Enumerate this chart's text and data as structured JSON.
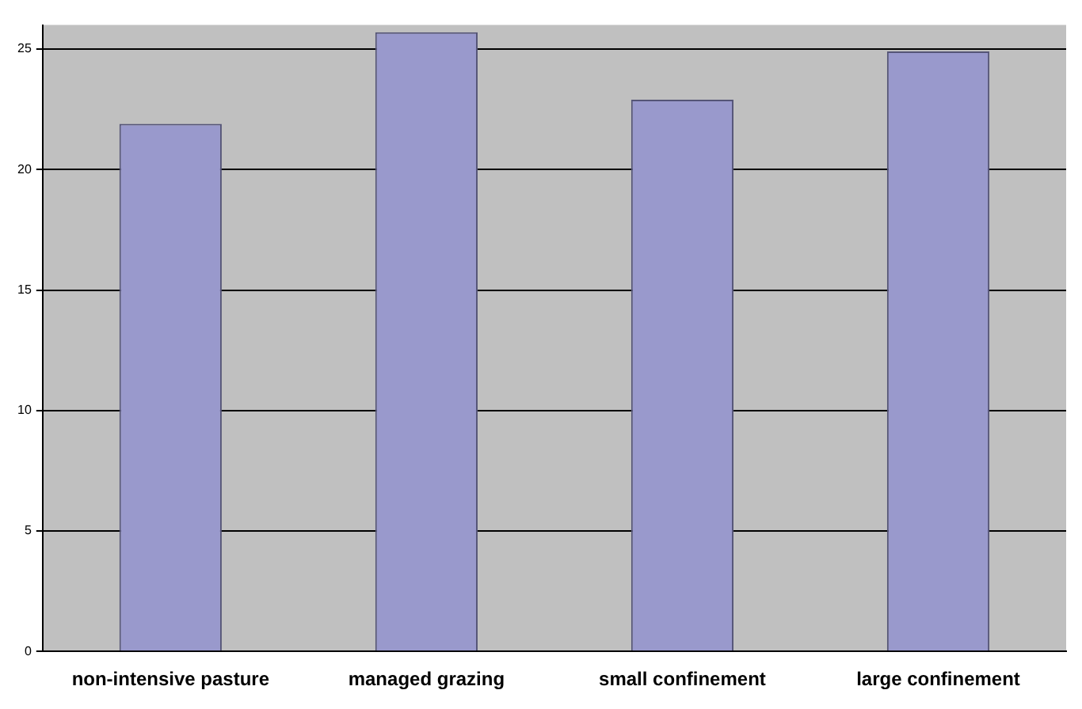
{
  "chart_data": {
    "type": "bar",
    "categories": [
      "non-intensive pasture",
      "managed grazing",
      "small confinement",
      "large confinement"
    ],
    "values": [
      21.9,
      25.7,
      22.9,
      24.9
    ],
    "color": "#9999cc",
    "ylim": [
      0,
      26
    ],
    "yticks": [
      0,
      5,
      10,
      15,
      20,
      25
    ],
    "grid": "y",
    "legend": false
  }
}
